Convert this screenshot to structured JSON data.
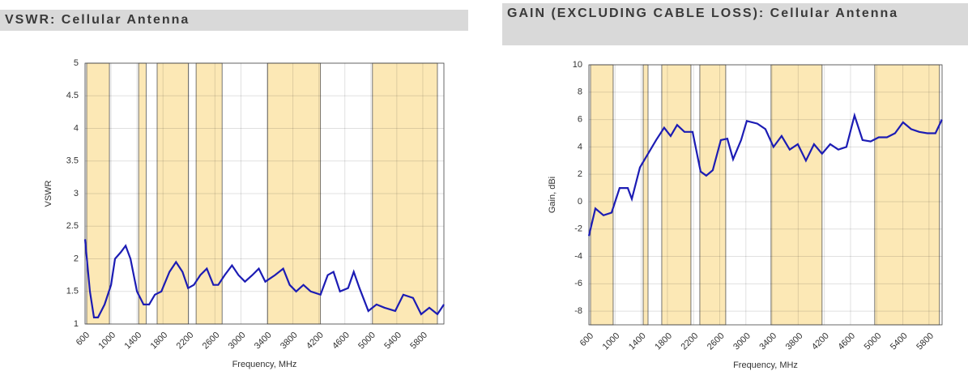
{
  "chart_data": [
    {
      "type": "line",
      "title": "VSWR: Cellular Antenna",
      "xlabel": "Frequency, MHz",
      "ylabel": "VSWR",
      "xlim": [
        600,
        6125
      ],
      "ylim": [
        1,
        5
      ],
      "xticks": [
        600,
        1000,
        1400,
        1800,
        2200,
        2600,
        3000,
        3400,
        3800,
        4200,
        4600,
        5000,
        5400,
        5800
      ],
      "yticks": [
        1,
        1.5,
        2,
        2.5,
        3,
        3.5,
        4,
        4.5,
        5
      ],
      "grid": true,
      "band_color": "#fce8b5",
      "bands": [
        [
          625,
          975
        ],
        [
          1425,
          1540
        ],
        [
          1710,
          2190
        ],
        [
          2310,
          2710
        ],
        [
          3410,
          4225
        ],
        [
          5025,
          6025
        ]
      ],
      "series": [
        {
          "name": "VSWR",
          "color": "#1c1cb4",
          "x": [
            600,
            675,
            737,
            800,
            900,
            1000,
            1062,
            1150,
            1225,
            1300,
            1400,
            1500,
            1587,
            1675,
            1775,
            1900,
            2000,
            2100,
            2187,
            2275,
            2375,
            2475,
            2575,
            2650,
            2750,
            2862,
            2962,
            3062,
            3175,
            3275,
            3375,
            3525,
            3650,
            3750,
            3850,
            3962,
            4075,
            4225,
            4337,
            4425,
            4525,
            4650,
            4737,
            4825,
            4962,
            5087,
            5212,
            5375,
            5500,
            5650,
            5775,
            5900,
            6025,
            6125
          ],
          "values": [
            2.3,
            1.5,
            1.1,
            1.1,
            1.3,
            1.6,
            2.0,
            2.1,
            2.2,
            2.0,
            1.5,
            1.3,
            1.3,
            1.45,
            1.5,
            1.8,
            1.95,
            1.8,
            1.55,
            1.6,
            1.75,
            1.85,
            1.6,
            1.6,
            1.75,
            1.9,
            1.75,
            1.65,
            1.75,
            1.85,
            1.65,
            1.75,
            1.85,
            1.6,
            1.5,
            1.6,
            1.5,
            1.45,
            1.75,
            1.8,
            1.5,
            1.55,
            1.8,
            1.55,
            1.2,
            1.3,
            1.25,
            1.2,
            1.45,
            1.4,
            1.15,
            1.25,
            1.15,
            1.3
          ]
        }
      ]
    },
    {
      "type": "line",
      "title": "GAIN (EXCLUDING CABLE LOSS): Cellular Antenna",
      "xlabel": "Frequency, MHz",
      "ylabel": "Gain, dBi",
      "xlim": [
        600,
        6000
      ],
      "ylim": [
        -9,
        10
      ],
      "xticks": [
        600,
        1000,
        1400,
        1800,
        2200,
        2600,
        3000,
        3400,
        3800,
        4200,
        4600,
        5000,
        5400,
        5800
      ],
      "yticks": [
        -8,
        -6,
        -4,
        -2,
        0,
        2,
        4,
        6,
        8,
        10
      ],
      "grid": true,
      "band_color": "#fce8b5",
      "bands": [
        [
          625,
          971
        ],
        [
          1430,
          1504
        ],
        [
          1714,
          2160
        ],
        [
          2296,
          2692
        ],
        [
          3385,
          4165
        ],
        [
          4970,
          5960
        ]
      ],
      "series": [
        {
          "name": "Gain",
          "color": "#1c1cb4",
          "x": [
            600,
            699,
            823,
            947,
            1070,
            1194,
            1256,
            1380,
            1504,
            1628,
            1751,
            1850,
            1949,
            2061,
            2185,
            2308,
            2395,
            2494,
            2618,
            2717,
            2804,
            2927,
            3014,
            3175,
            3299,
            3423,
            3546,
            3670,
            3794,
            3918,
            4042,
            4165,
            4289,
            4413,
            4537,
            4661,
            4784,
            4908,
            5032,
            5156,
            5280,
            5403,
            5527,
            5651,
            5775,
            5899,
            5998
          ],
          "values": [
            -2.5,
            -0.5,
            -1,
            -0.8,
            1,
            1,
            0.2,
            2.5,
            3.5,
            4.5,
            5.4,
            4.8,
            5.6,
            5.1,
            5.1,
            2.2,
            1.9,
            2.3,
            4.5,
            4.6,
            3.1,
            4.5,
            5.9,
            5.7,
            5.3,
            4.0,
            4.8,
            3.8,
            4.2,
            3.0,
            4.2,
            3.5,
            4.2,
            3.8,
            4.0,
            6.3,
            4.5,
            4.4,
            4.7,
            4.7,
            5.0,
            5.8,
            5.3,
            5.1,
            5.0,
            5.0,
            6.0
          ]
        }
      ]
    }
  ]
}
